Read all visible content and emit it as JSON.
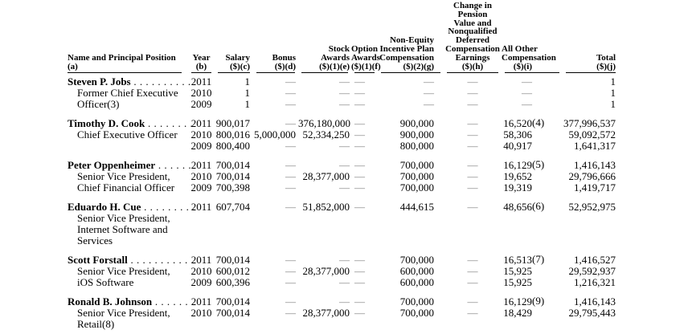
{
  "table": {
    "dash": "—",
    "columns": [
      {
        "id": "name",
        "lines": [
          "Name and Principal Position",
          "(a)"
        ]
      },
      {
        "id": "year",
        "lines": [
          "Year",
          "(b)"
        ]
      },
      {
        "id": "salary",
        "lines": [
          "Salary",
          "($)(c)"
        ]
      },
      {
        "id": "bonus",
        "lines": [
          "Bonus",
          "($)(d)"
        ]
      },
      {
        "id": "stock_awards",
        "lines": [
          "Stock",
          "Awards",
          "($)(1)(e)"
        ]
      },
      {
        "id": "option_awards",
        "lines": [
          "Option",
          "Awards",
          "($)(1)(f)"
        ]
      },
      {
        "id": "non_equity",
        "lines": [
          "Non-Equity",
          "Incentive Plan",
          "Compensation",
          "($)(2)(g)"
        ]
      },
      {
        "id": "pension",
        "lines": [
          "Change in",
          "Pension",
          "Value and",
          "Nonqualified",
          "Deferred",
          "Compensation",
          "Earnings",
          "($)(h)"
        ]
      },
      {
        "id": "all_other",
        "lines": [
          "All Other",
          "Compensation",
          "($)(i)"
        ]
      },
      {
        "id": "total",
        "lines": [
          "Total",
          "($)(j)"
        ]
      }
    ],
    "groups": [
      {
        "rows": [
          {
            "name": "Steven P. Jobs",
            "leader": ". . . . . . . . . .",
            "cells": [
              "2011",
              "1",
              "—",
              "—",
              "—",
              "—",
              "—",
              "—",
              "1"
            ]
          },
          {
            "position": "Former Chief Executive",
            "cells": [
              "2010",
              "1",
              "—",
              "—",
              "—",
              "—",
              "—",
              "—",
              "1"
            ]
          },
          {
            "position": "Officer(3)",
            "cells": [
              "2009",
              "1",
              "—",
              "—",
              "—",
              "—",
              "—",
              "—",
              "1"
            ]
          }
        ]
      },
      {
        "rows": [
          {
            "name": "Timothy D. Cook",
            "leader": ". . . . . . . .",
            "cells": [
              "2011",
              "900,017",
              "—",
              "376,180,000",
              "—",
              "900,000",
              "—",
              "16,520(4)",
              "377,996,537"
            ]
          },
          {
            "position": "Chief Executive Officer",
            "cells": [
              "2010",
              "800,016",
              "5,000,000",
              "52,334,250",
              "—",
              "900,000",
              "—",
              "58,306",
              "59,092,572"
            ]
          },
          {
            "position": "",
            "cells": [
              "2009",
              "800,400",
              "—",
              "—",
              "—",
              "800,000",
              "—",
              "40,917",
              "1,641,317"
            ]
          }
        ]
      },
      {
        "rows": [
          {
            "name": "Peter Oppenheimer",
            "leader": ". . . . . .",
            "cells": [
              "2011",
              "700,014",
              "—",
              "—",
              "—",
              "700,000",
              "—",
              "16,129(5)",
              "1,416,143"
            ]
          },
          {
            "position": "Senior Vice President,",
            "cells": [
              "2010",
              "700,014",
              "—",
              "28,377,000",
              "—",
              "700,000",
              "—",
              "19,652",
              "29,796,666"
            ]
          },
          {
            "position": "Chief Financial Officer",
            "cells": [
              "2009",
              "700,398",
              "—",
              "—",
              "—",
              "700,000",
              "—",
              "19,319",
              "1,419,717"
            ]
          }
        ]
      },
      {
        "rows": [
          {
            "name": "Eduardo H. Cue",
            "leader": ". . . . . . . . .",
            "cells": [
              "2011",
              "607,704",
              "—",
              "51,852,000",
              "—",
              "444,615",
              "—",
              "48,656(6)",
              "52,952,975"
            ]
          },
          {
            "position": "Senior Vice President,",
            "cells": []
          },
          {
            "position": "Internet Software and",
            "cells": []
          },
          {
            "position": "Services",
            "cells": []
          }
        ]
      },
      {
        "rows": [
          {
            "name": "Scott Forstall",
            "leader": " . . . . . . . . . . .",
            "cells": [
              "2011",
              "700,014",
              "—",
              "—",
              "—",
              "700,000",
              "—",
              "16,513(7)",
              "1,416,527"
            ]
          },
          {
            "position": "Senior Vice President,",
            "cells": [
              "2010",
              "600,012",
              "—",
              "28,377,000",
              "—",
              "600,000",
              "—",
              "15,925",
              "29,592,937"
            ]
          },
          {
            "position": "iOS Software",
            "cells": [
              "2009",
              "600,396",
              "—",
              "—",
              "—",
              "600,000",
              "—",
              "15,925",
              "1,216,321"
            ]
          }
        ]
      },
      {
        "rows": [
          {
            "name": "Ronald B. Johnson",
            "leader": ". . . . . . .",
            "cells": [
              "2011",
              "700,014",
              "—",
              "—",
              "—",
              "700,000",
              "—",
              "16,129(9)",
              "1,416,143"
            ]
          },
          {
            "position": "Senior Vice President,",
            "cells": [
              "2010",
              "700,014",
              "—",
              "28,377,000",
              "—",
              "700,000",
              "—",
              "18,429",
              "29,795,443"
            ]
          },
          {
            "position": "Retail(8)",
            "cells": []
          }
        ]
      }
    ]
  }
}
